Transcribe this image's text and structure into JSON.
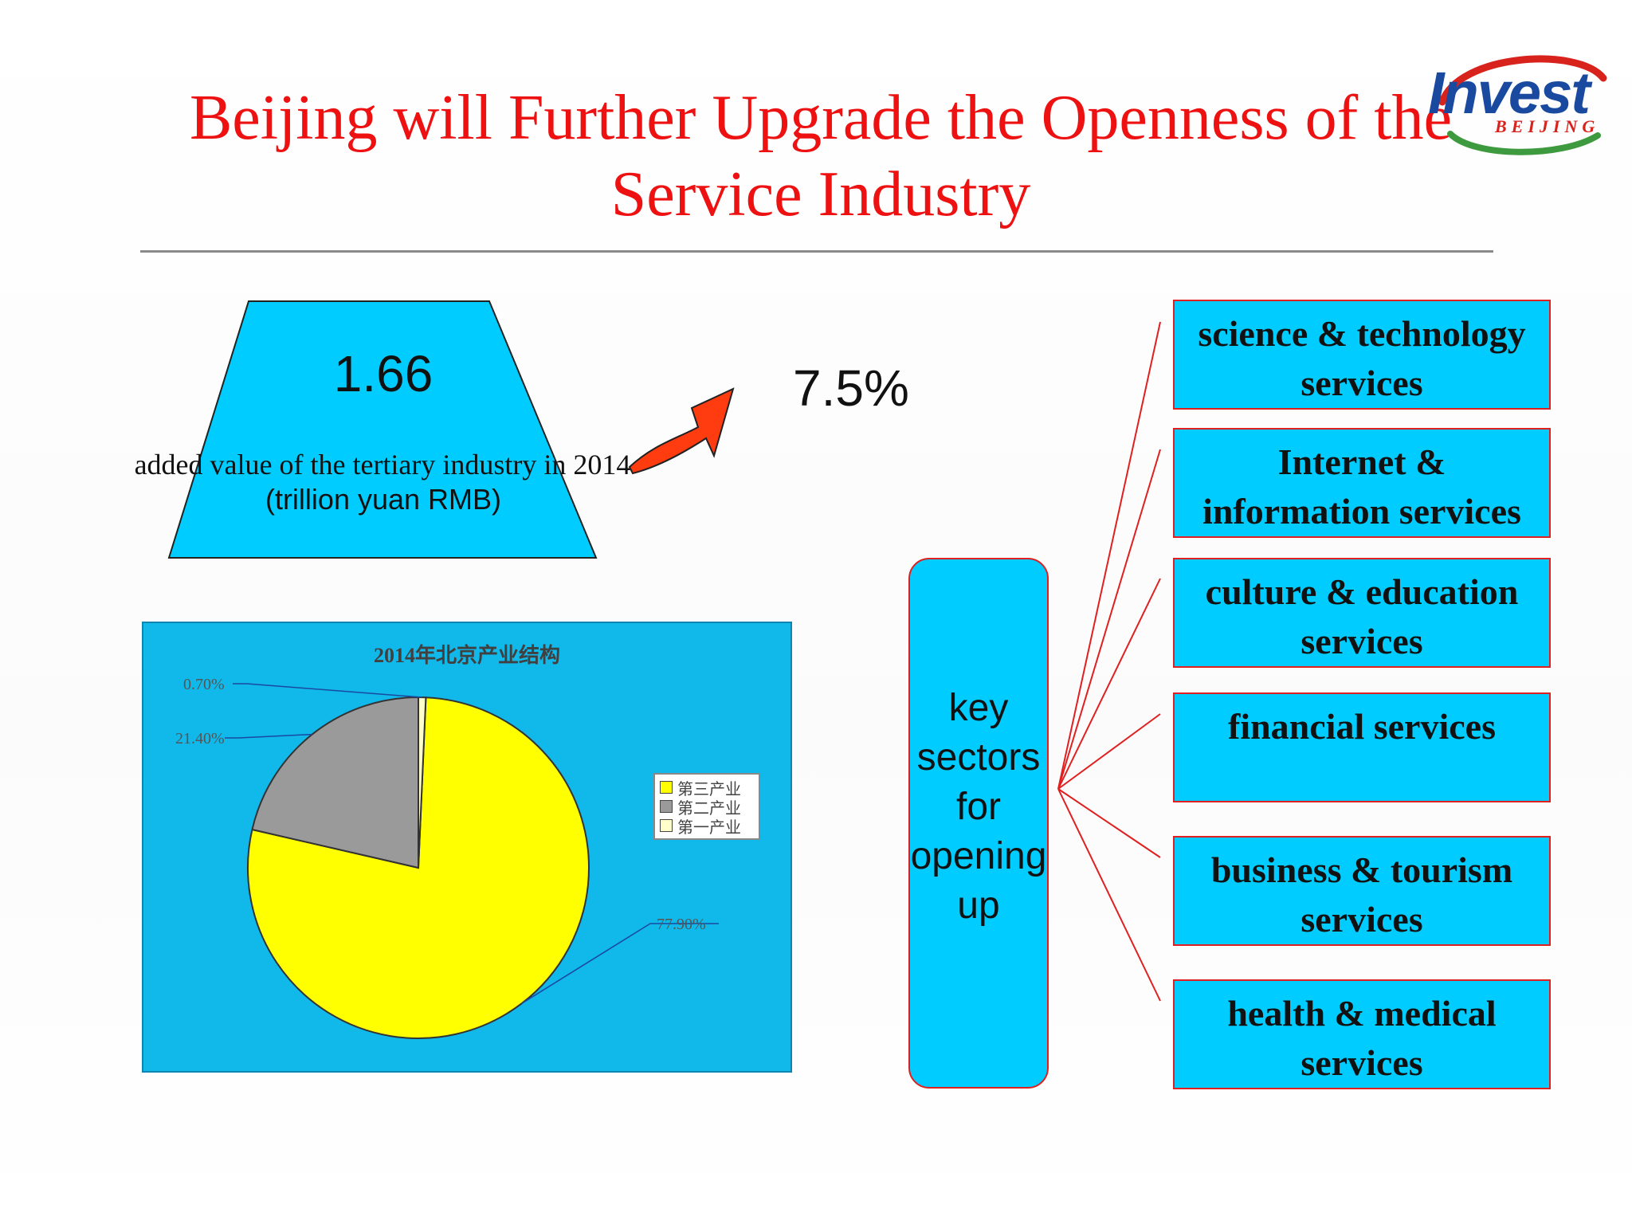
{
  "title": "Beijing will Further Upgrade the Openness of the Service Industry",
  "logo": {
    "word": "Invest",
    "sub": "BEIJING"
  },
  "tertiary": {
    "value": "1.66",
    "caption": "added value of the tertiary industry in 2014",
    "unit": "(trillion yuan RMB)",
    "growth": "7.5%"
  },
  "colors": {
    "title": "#ee1111",
    "panel": "#11b8ea",
    "box": "#00ccff",
    "border": "#e02020"
  },
  "chart_data": {
    "type": "pie",
    "title": "2014年北京产业结构",
    "slices": [
      {
        "name": "第三产业",
        "value": 77.9,
        "label": "77.90%",
        "color": "#ffff00"
      },
      {
        "name": "第二产业",
        "value": 21.4,
        "label": "21.40%",
        "color": "#9a9a9a"
      },
      {
        "name": "第一产业",
        "value": 0.7,
        "label": "0.70%",
        "color": "#ffffcc"
      }
    ],
    "legend": [
      "第三产业",
      "第二产业",
      "第一产业"
    ],
    "legend_position": "right"
  },
  "key_sectors": {
    "label": "key sectors for opening up",
    "items": [
      "science & technology services",
      "Internet & information services",
      "culture & education services",
      "financial services",
      "business & tourism services",
      "health & medical services"
    ]
  }
}
